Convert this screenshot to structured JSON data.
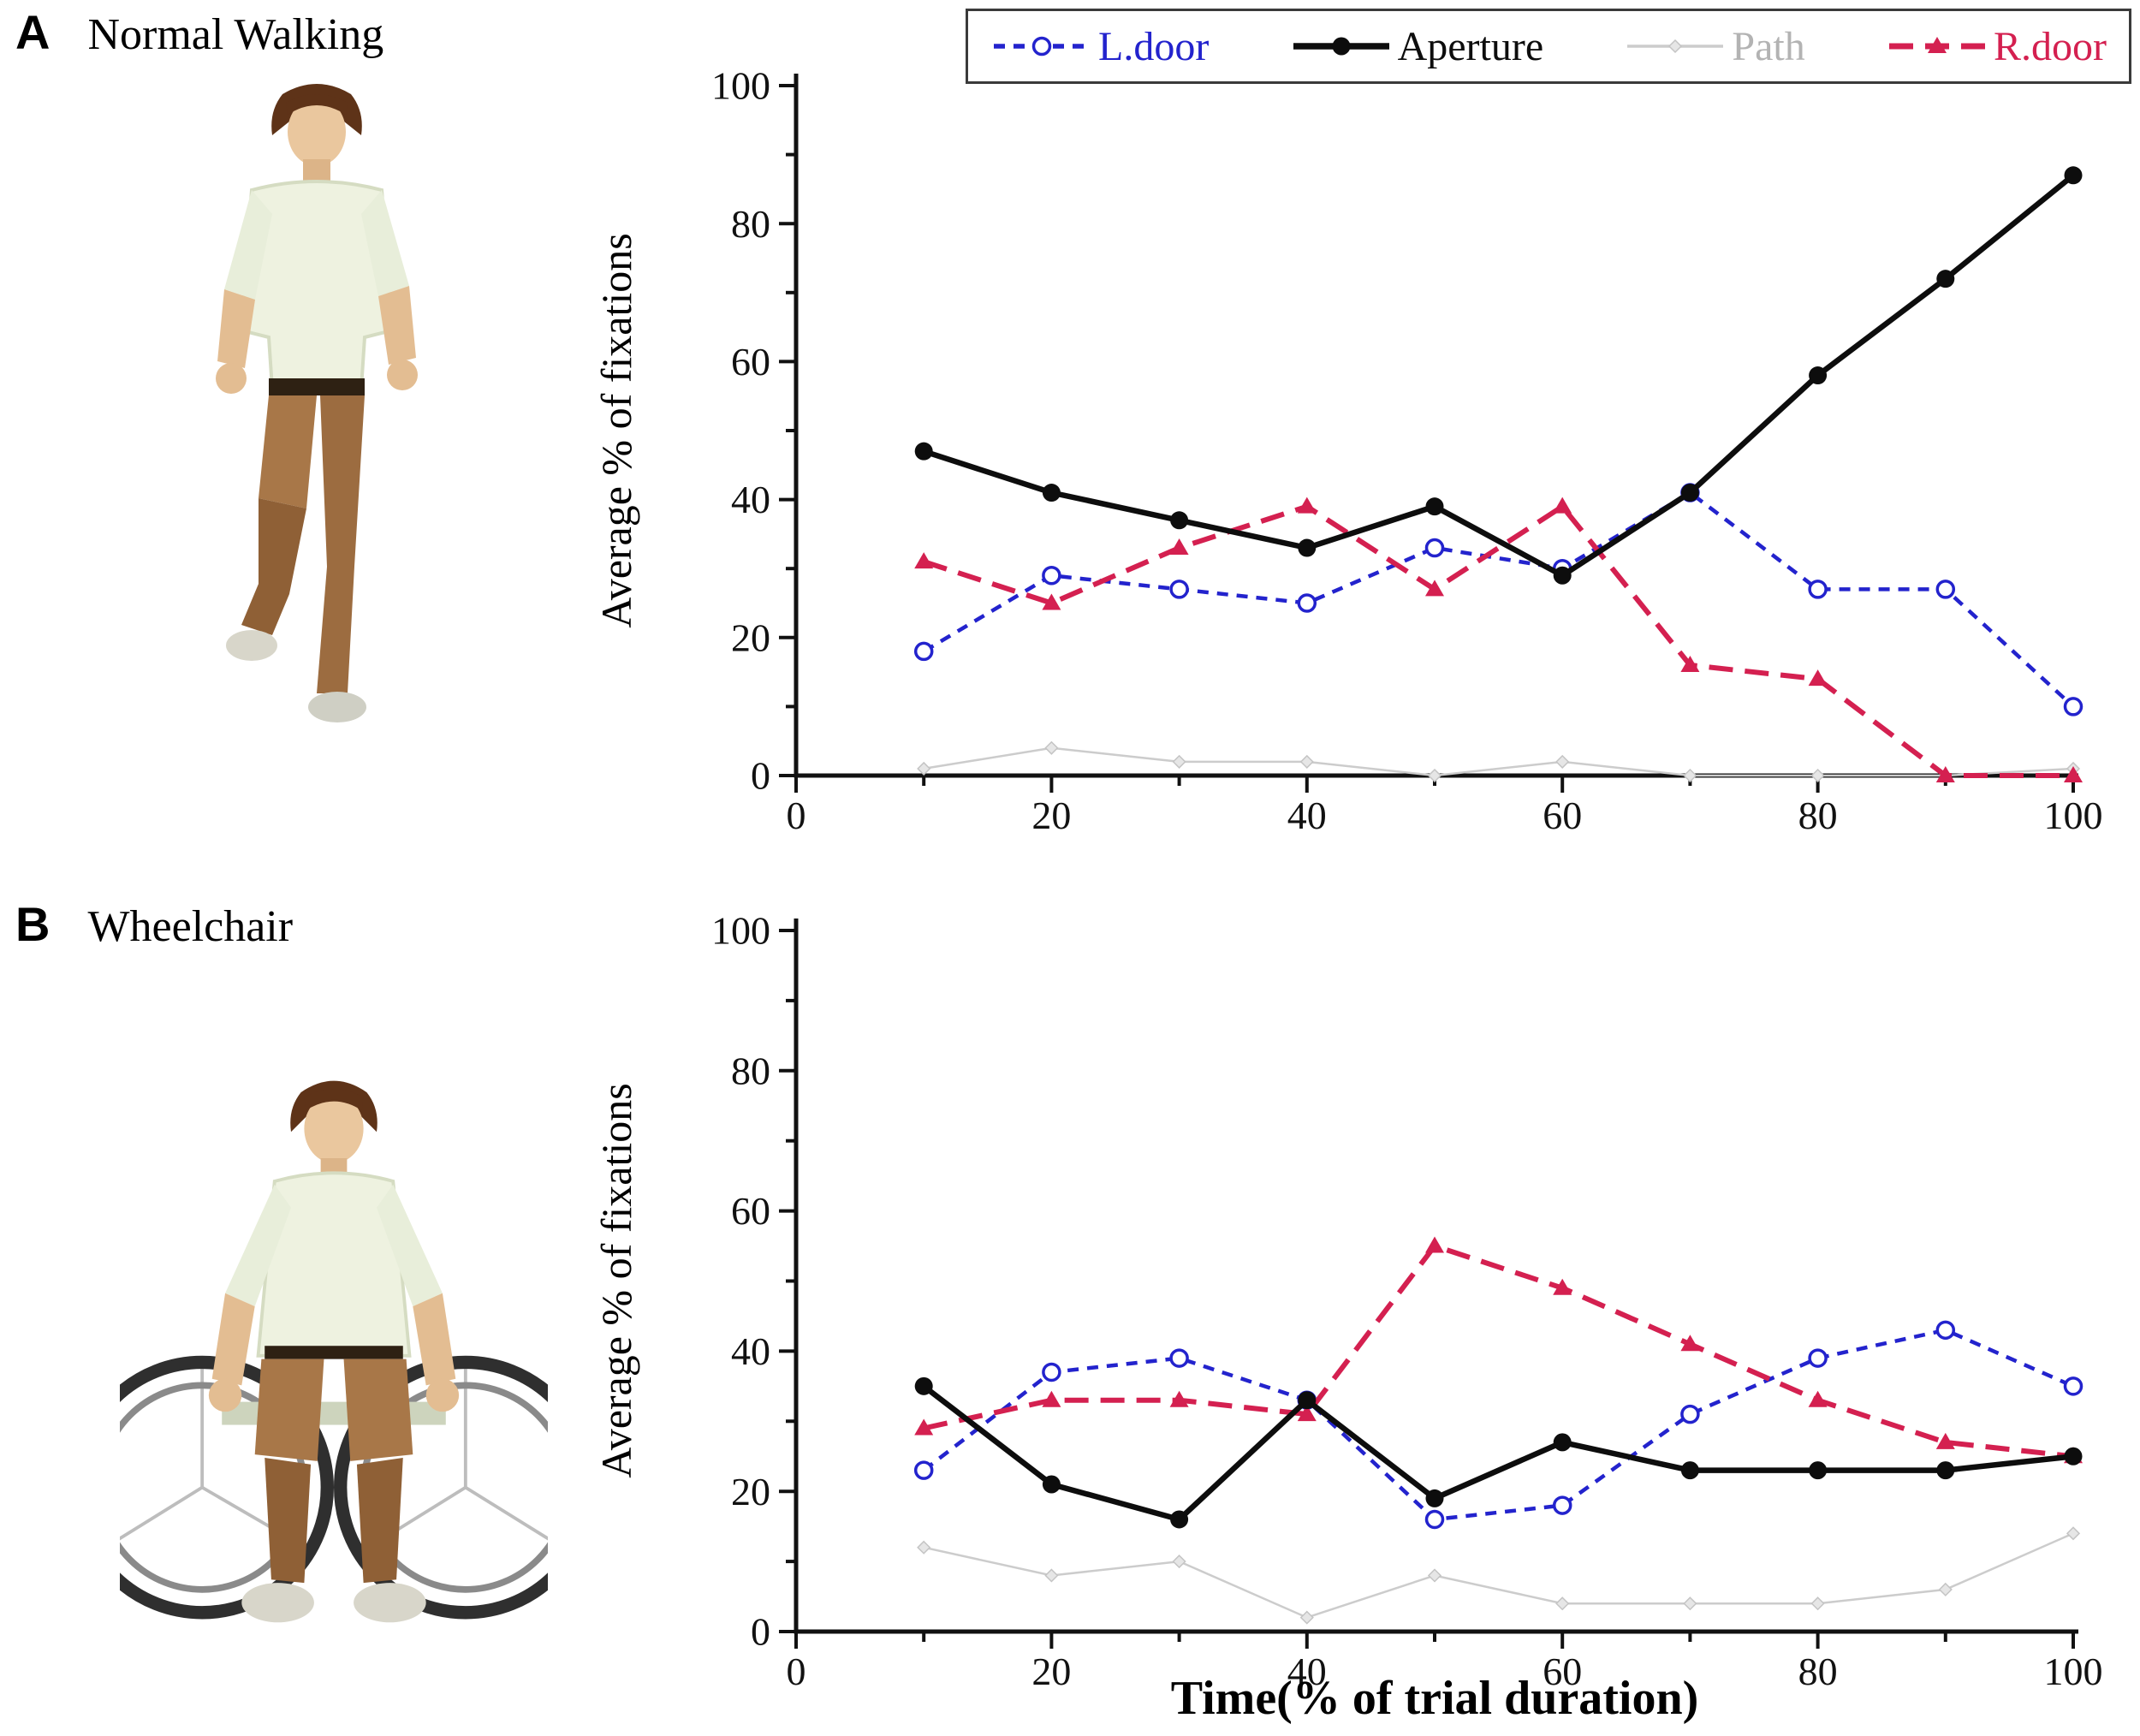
{
  "panels": [
    {
      "label": "A",
      "title": "Normal Walking",
      "image_alt": "3D rendered man walking toward viewer"
    },
    {
      "label": "B",
      "title": "Wheelchair",
      "image_alt": "3D rendered man seated in a wheelchair"
    }
  ],
  "legend": {
    "items": [
      {
        "label": "L.door",
        "color": "#2323cd",
        "text_color": "#2323cd",
        "dash": "13 10",
        "width": 4.5,
        "marker": "circle-open"
      },
      {
        "label": "Aperture",
        "color": "#0d0d0d",
        "text_color": "#0d0d0d",
        "dash": "",
        "width": 6.5,
        "marker": "circle-filled"
      },
      {
        "label": "Path",
        "color": "#cccccc",
        "text_color": "#b3b3b3",
        "dash": "",
        "width": 2.5,
        "marker": "diamond"
      },
      {
        "label": "R.door",
        "color": "#d42050",
        "text_color": "#d42050",
        "dash": "28 14",
        "width": 6,
        "marker": "triangle-filled"
      }
    ]
  },
  "chart_data": [
    {
      "type": "line",
      "panel": "A",
      "panel_title": "Normal Walking",
      "x": [
        10,
        20,
        30,
        40,
        50,
        60,
        70,
        80,
        90,
        100
      ],
      "xlim": [
        0,
        100
      ],
      "ylim": [
        0,
        100
      ],
      "x_major_step": 20,
      "x_minor_step": 10,
      "y_major_step": 20,
      "y_minor_step": 10,
      "xlabel": "",
      "ylabel": "Average % of fixations",
      "series": [
        {
          "name": "Path",
          "values": [
            1,
            4,
            2,
            2,
            0,
            2,
            0,
            0,
            0,
            1
          ]
        },
        {
          "name": "L.door",
          "values": [
            18,
            29,
            27,
            25,
            33,
            30,
            41,
            27,
            27,
            10
          ]
        },
        {
          "name": "R.door",
          "values": [
            31,
            25,
            33,
            39,
            27,
            39,
            16,
            14,
            0,
            0
          ]
        },
        {
          "name": "Aperture",
          "values": [
            47,
            41,
            37,
            33,
            39,
            29,
            41,
            58,
            72,
            87
          ]
        }
      ]
    },
    {
      "type": "line",
      "panel": "B",
      "panel_title": "Wheelchair",
      "x": [
        10,
        20,
        30,
        40,
        50,
        60,
        70,
        80,
        90,
        100
      ],
      "xlim": [
        0,
        100
      ],
      "ylim": [
        0,
        100
      ],
      "x_major_step": 20,
      "x_minor_step": 10,
      "y_major_step": 20,
      "y_minor_step": 10,
      "xlabel": "Time(% of trial duration)",
      "ylabel": "Average % of fixations",
      "series": [
        {
          "name": "Path",
          "values": [
            12,
            8,
            10,
            2,
            8,
            4,
            4,
            4,
            6,
            14
          ]
        },
        {
          "name": "L.door",
          "values": [
            23,
            37,
            39,
            33,
            16,
            18,
            31,
            39,
            43,
            35
          ]
        },
        {
          "name": "R.door",
          "values": [
            29,
            33,
            33,
            31,
            55,
            49,
            41,
            33,
            27,
            25
          ]
        },
        {
          "name": "Aperture",
          "values": [
            35,
            21,
            16,
            33,
            19,
            27,
            23,
            23,
            23,
            25
          ]
        }
      ]
    }
  ]
}
